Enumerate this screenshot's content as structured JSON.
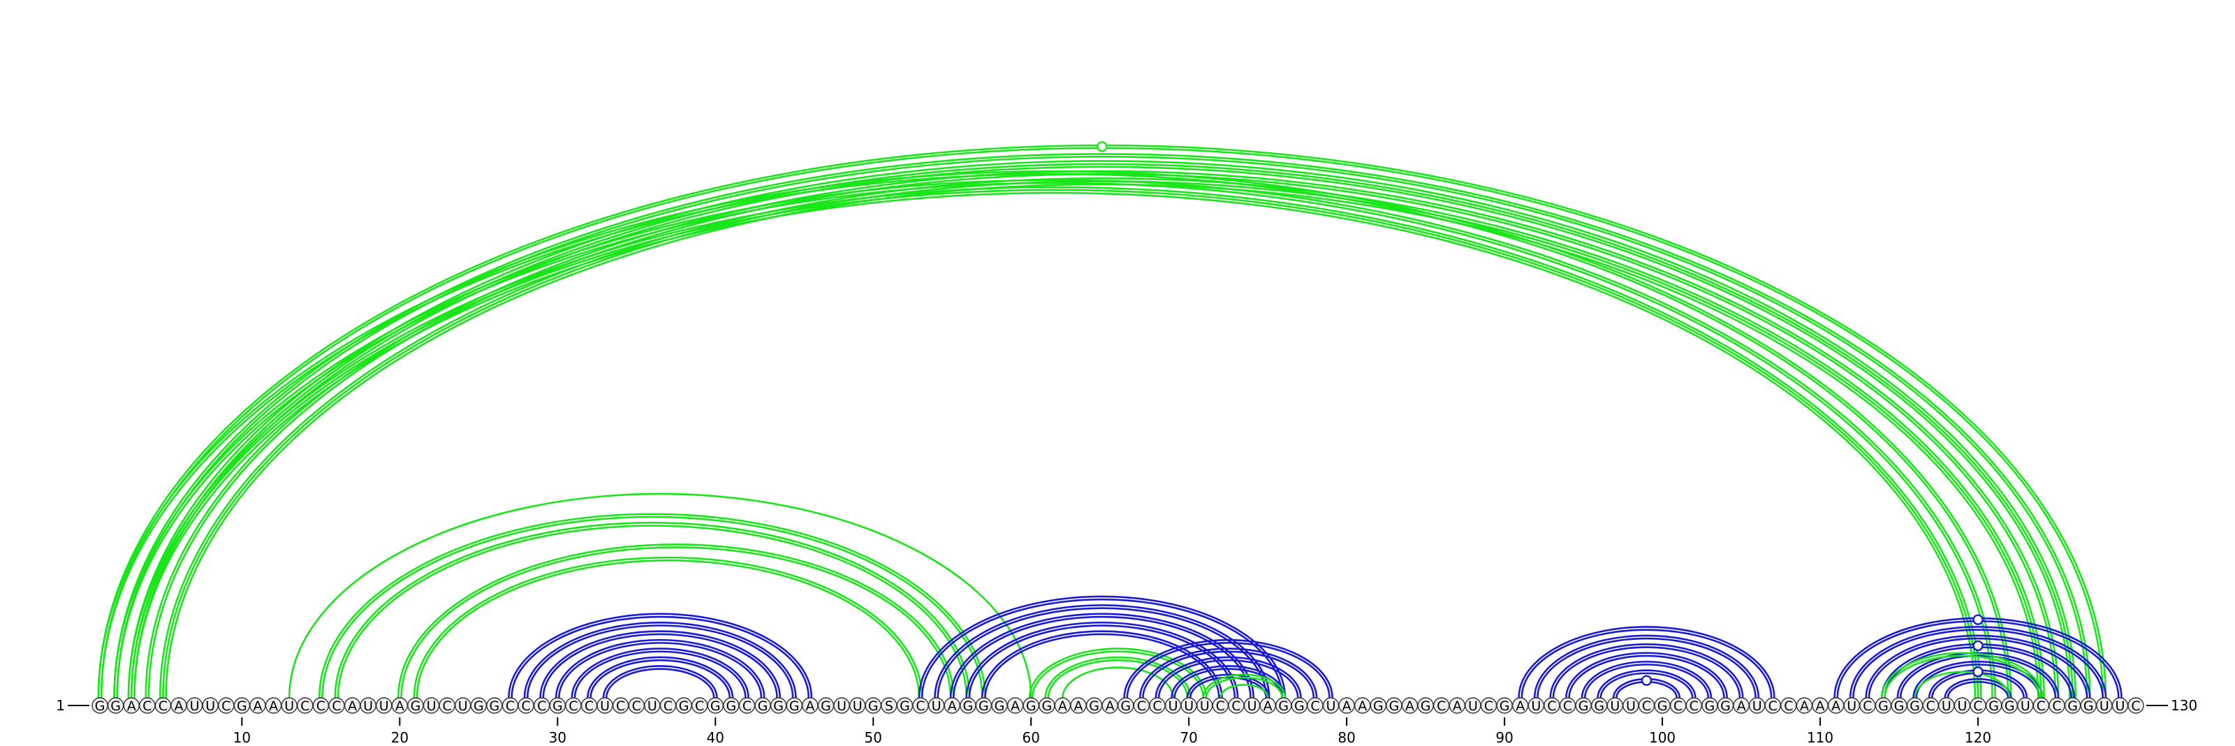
{
  "sequence": "GGACCAUUCGAAUCCCAUUAGUCUGGCCCGCCUCCUCGCGGCGGGAGUUGSGCUAGGGAGGAAGAGCCUUUCCUAGGCUAAGGAGCAUCGAUCCGGUUCGCCGGAUCCAAAUCGGGCUUCGGUCCGGUUC",
  "start_label": "1",
  "end_label": "130",
  "ticks": [
    "10",
    "20",
    "30",
    "40",
    "50",
    "60",
    "70",
    "80",
    "90",
    "100",
    "110",
    "120"
  ],
  "colors": {
    "green": "#19e619",
    "blue": "#1a1ad6",
    "nucleotide_fill": "#f0f0f0",
    "nucleotide_stroke": "#333333",
    "text": "#000000"
  },
  "arcs": [
    {
      "i": 1,
      "j": 128,
      "color": "green",
      "bands": 2
    },
    {
      "i": 2,
      "j": 127,
      "color": "green",
      "bands": 2
    },
    {
      "i": 3,
      "j": 126,
      "color": "green",
      "bands": 3
    },
    {
      "i": 4,
      "j": 125,
      "color": "green",
      "bands": 2
    },
    {
      "i": 5,
      "j": 124,
      "color": "green",
      "bands": 3
    },
    {
      "i": 1,
      "j": 122,
      "color": "green",
      "bands": 2
    },
    {
      "i": 2,
      "j": 121,
      "color": "green",
      "bands": 2
    },
    {
      "i": 3,
      "j": 120,
      "color": "green",
      "bands": 3
    },
    {
      "i": 13,
      "j": 60,
      "color": "green",
      "bands": 1
    },
    {
      "i": 15,
      "j": 57,
      "color": "green",
      "bands": 2
    },
    {
      "i": 16,
      "j": 56,
      "color": "green",
      "bands": 2
    },
    {
      "i": 20,
      "j": 55,
      "color": "green",
      "bands": 2
    },
    {
      "i": 21,
      "j": 53,
      "color": "green",
      "bands": 2
    },
    {
      "i": 27,
      "j": 46,
      "color": "blue",
      "bands": 2
    },
    {
      "i": 28,
      "j": 45,
      "color": "blue",
      "bands": 2
    },
    {
      "i": 29,
      "j": 44,
      "color": "blue",
      "bands": 2
    },
    {
      "i": 30,
      "j": 43,
      "color": "blue",
      "bands": 2
    },
    {
      "i": 31,
      "j": 42,
      "color": "blue",
      "bands": 2
    },
    {
      "i": 32,
      "j": 41,
      "color": "blue",
      "bands": 2
    },
    {
      "i": 33,
      "j": 40,
      "color": "blue",
      "bands": 2
    },
    {
      "i": 53,
      "j": 76,
      "color": "blue",
      "bands": 2
    },
    {
      "i": 54,
      "j": 75,
      "color": "blue",
      "bands": 2
    },
    {
      "i": 55,
      "j": 74,
      "color": "blue",
      "bands": 2
    },
    {
      "i": 56,
      "j": 73,
      "color": "blue",
      "bands": 2
    },
    {
      "i": 57,
      "j": 72,
      "color": "blue",
      "bands": 2
    },
    {
      "i": 60,
      "j": 71,
      "color": "green",
      "bands": 2
    },
    {
      "i": 61,
      "j": 70,
      "color": "green",
      "bands": 2
    },
    {
      "i": 62,
      "j": 69,
      "color": "green",
      "bands": 1
    },
    {
      "i": 66,
      "j": 79,
      "color": "blue",
      "bands": 2
    },
    {
      "i": 67,
      "j": 78,
      "color": "blue",
      "bands": 2
    },
    {
      "i": 68,
      "j": 77,
      "color": "blue",
      "bands": 2
    },
    {
      "i": 69,
      "j": 76,
      "color": "blue",
      "bands": 2
    },
    {
      "i": 70,
      "j": 75,
      "color": "blue",
      "bands": 2
    },
    {
      "i": 71,
      "j": 76,
      "color": "green",
      "bands": 2
    },
    {
      "i": 72,
      "j": 75,
      "color": "green",
      "bands": 1
    },
    {
      "i": 91,
      "j": 107,
      "color": "blue",
      "bands": 2
    },
    {
      "i": 92,
      "j": 106,
      "color": "blue",
      "bands": 2
    },
    {
      "i": 93,
      "j": 105,
      "color": "blue",
      "bands": 2
    },
    {
      "i": 94,
      "j": 104,
      "color": "blue",
      "bands": 2
    },
    {
      "i": 95,
      "j": 103,
      "color": "blue",
      "bands": 2
    },
    {
      "i": 96,
      "j": 102,
      "color": "blue",
      "bands": 2
    },
    {
      "i": 97,
      "j": 101,
      "color": "blue",
      "bands": 2
    },
    {
      "i": 111,
      "j": 129,
      "color": "blue",
      "bands": 2
    },
    {
      "i": 112,
      "j": 128,
      "color": "blue",
      "bands": 2
    },
    {
      "i": 113,
      "j": 127,
      "color": "blue",
      "bands": 2
    },
    {
      "i": 114,
      "j": 126,
      "color": "blue",
      "bands": 2
    },
    {
      "i": 115,
      "j": 125,
      "color": "blue",
      "bands": 2
    },
    {
      "i": 116,
      "j": 124,
      "color": "blue",
      "bands": 2
    },
    {
      "i": 117,
      "j": 123,
      "color": "blue",
      "bands": 2
    },
    {
      "i": 118,
      "j": 122,
      "color": "blue",
      "bands": 2
    },
    {
      "i": 114,
      "j": 124,
      "color": "green",
      "bands": 2
    },
    {
      "i": 116,
      "j": 122,
      "color": "green",
      "bands": 1
    }
  ],
  "markers": [
    {
      "i": 1,
      "j": 128,
      "color": "green"
    },
    {
      "i": 97,
      "j": 101,
      "color": "blue"
    },
    {
      "i": 111,
      "j": 129,
      "color": "blue"
    },
    {
      "i": 114,
      "j": 126,
      "color": "blue"
    },
    {
      "i": 117,
      "j": 123,
      "color": "blue"
    }
  ]
}
